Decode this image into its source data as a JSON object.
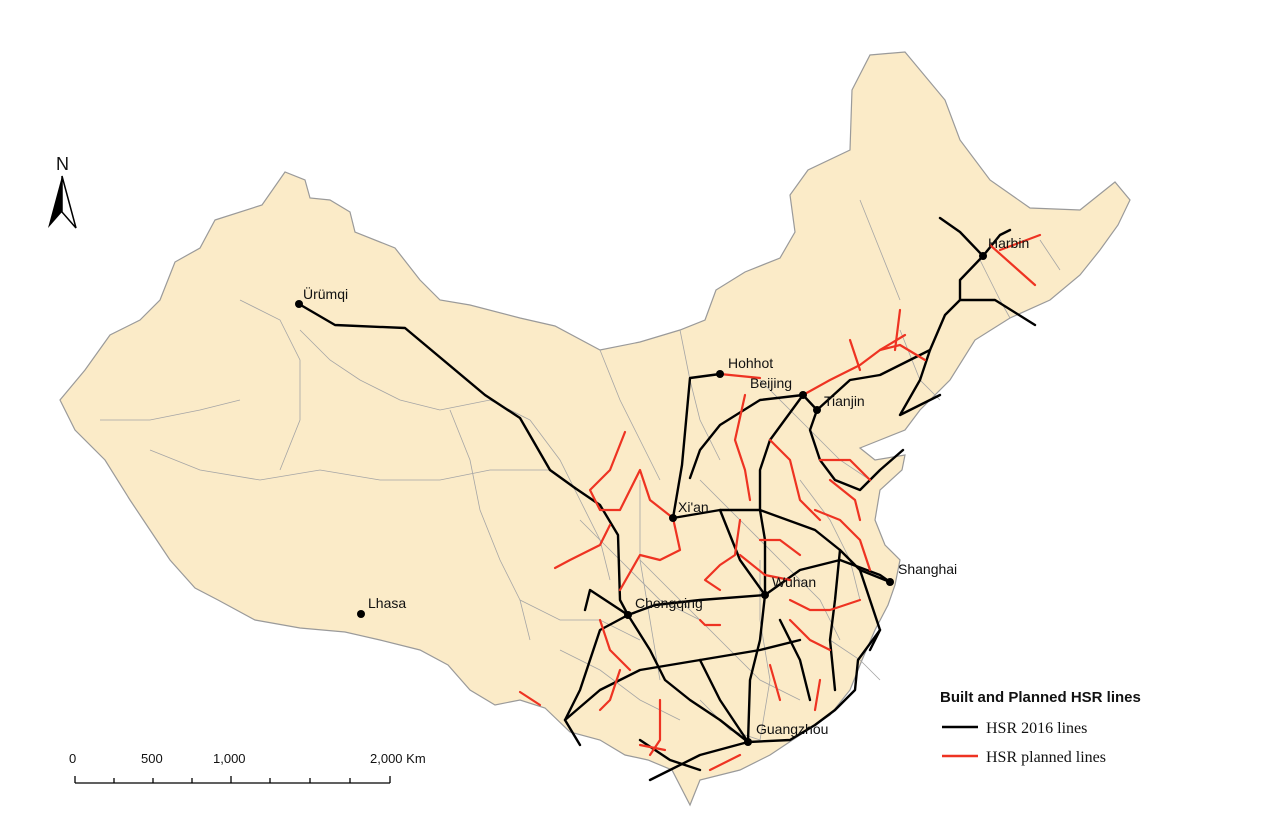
{
  "map": {
    "colors": {
      "land": "#fbebc8",
      "border": "#9a9a9a",
      "background": "#ffffff",
      "hsr_built": "#000000",
      "hsr_planned": "#ee3322"
    },
    "cities": [
      {
        "id": "urumqi",
        "name": "Ürümqi"
      },
      {
        "id": "lhasa",
        "name": "Lhasa"
      },
      {
        "id": "hohhot",
        "name": "Hohhot"
      },
      {
        "id": "beijing",
        "name": "Beijing"
      },
      {
        "id": "tianjin",
        "name": "Tianjin"
      },
      {
        "id": "harbin",
        "name": "Harbin"
      },
      {
        "id": "xian",
        "name": "Xi'an"
      },
      {
        "id": "shanghai",
        "name": "Shanghai"
      },
      {
        "id": "wuhan",
        "name": "Wuhan"
      },
      {
        "id": "chongqing",
        "name": "Chongqing"
      },
      {
        "id": "guangzhou",
        "name": "Guangzhou"
      }
    ]
  },
  "north_arrow": {
    "label": "N",
    "icon": "north-arrow-icon"
  },
  "scale_bar": {
    "labels": [
      "0",
      "500",
      "1,000",
      "2,000 Km"
    ]
  },
  "legend": {
    "title": "Built and Planned HSR lines",
    "items": [
      {
        "label": "HSR 2016 lines",
        "color": "#000000"
      },
      {
        "label": "HSR planned lines",
        "color": "#ee3322"
      }
    ]
  }
}
